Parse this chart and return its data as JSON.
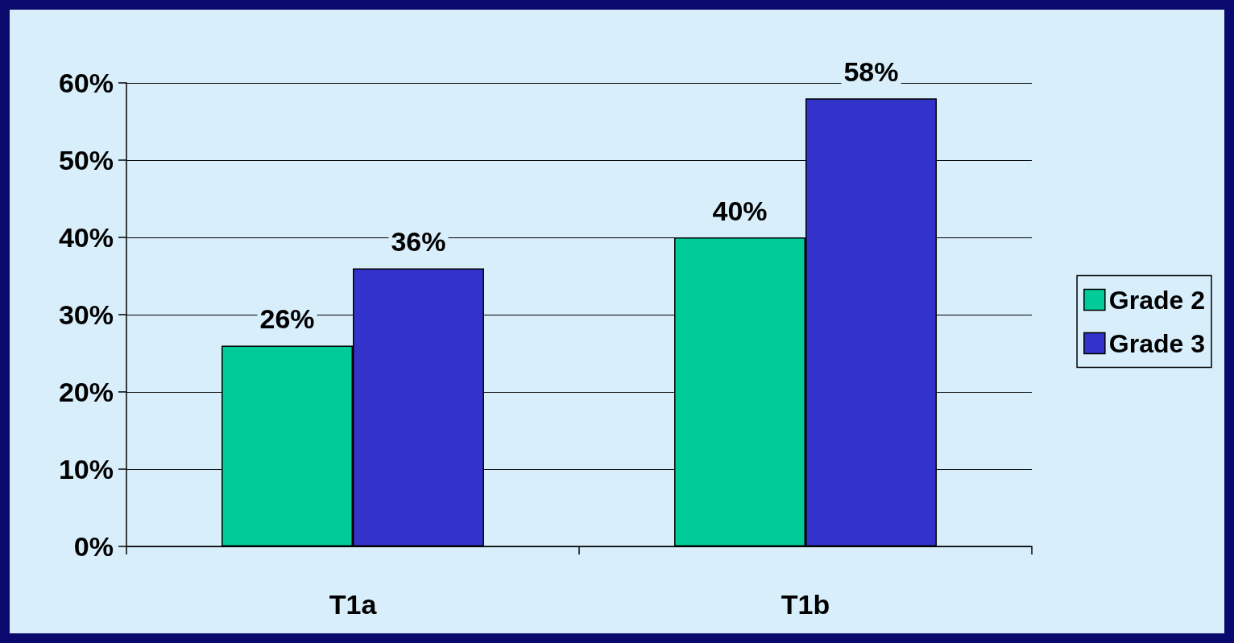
{
  "chart_data": {
    "type": "bar",
    "categories": [
      "T1a",
      "T1b"
    ],
    "series": [
      {
        "name": "Grade 2",
        "color": "#00cc99",
        "values": [
          26,
          40
        ],
        "value_labels": [
          "26%",
          "40%"
        ]
      },
      {
        "name": "Grade 3",
        "color": "#3333cc",
        "values": [
          36,
          58
        ],
        "value_labels": [
          "36%",
          "58%"
        ]
      }
    ],
    "ylim": [
      0,
      60
    ],
    "yticks": [
      {
        "value": 0,
        "label": "0%"
      },
      {
        "value": 10,
        "label": "10%"
      },
      {
        "value": 20,
        "label": "20%"
      },
      {
        "value": 30,
        "label": "30%"
      },
      {
        "value": 40,
        "label": "40%"
      },
      {
        "value": 50,
        "label": "50%"
      },
      {
        "value": 60,
        "label": "60%"
      }
    ],
    "grid": "y",
    "legend": "right"
  }
}
